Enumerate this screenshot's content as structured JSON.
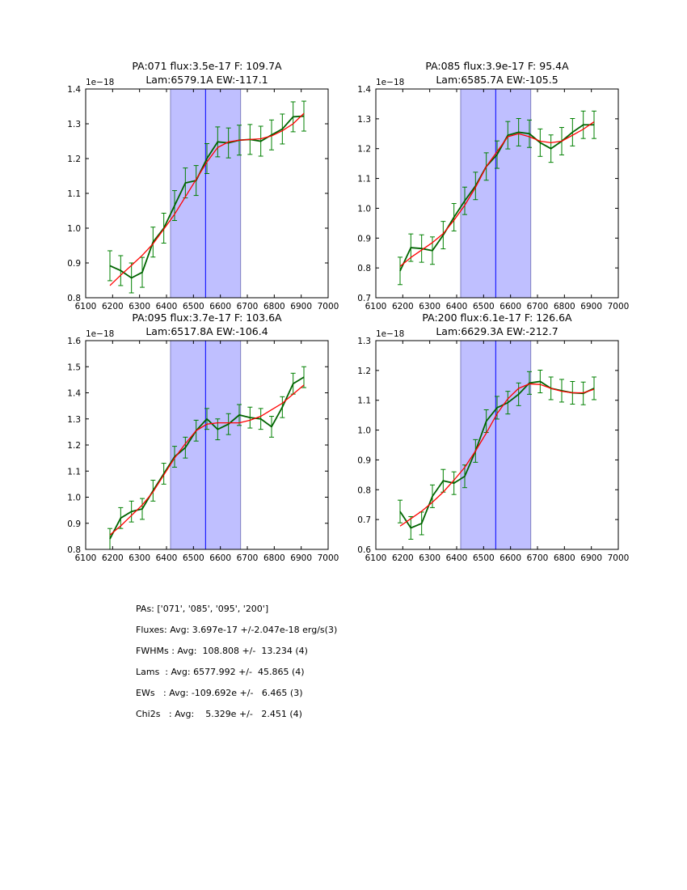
{
  "colors": {
    "data": "#006400",
    "errorbar": "#008000",
    "model": "#ff0000",
    "band": "#bfbfff",
    "band_edge": "#8080c0",
    "center": "#0000ff"
  },
  "chart_data": [
    {
      "type": "line",
      "title": [
        "PA:071 flux:3.5e-17 F: 109.7A",
        "Lam:6579.1A EW:-117.1"
      ],
      "offset_label": "1e−18",
      "xlim": [
        6100,
        7000
      ],
      "ylim": [
        0.8,
        1.4
      ],
      "xticks": [
        6100,
        6200,
        6300,
        6400,
        6500,
        6600,
        6700,
        6800,
        6900,
        7000
      ],
      "yticks": [
        "0.8",
        "0.9",
        "1.0",
        "1.1",
        "1.2",
        "1.3",
        "1.4"
      ],
      "band": [
        6415,
        6675
      ],
      "center": 6545,
      "x": [
        6190,
        6230,
        6270,
        6310,
        6350,
        6390,
        6430,
        6470,
        6510,
        6550,
        6590,
        6630,
        6670,
        6710,
        6750,
        6790,
        6830,
        6870,
        6910
      ],
      "series": [
        {
          "name": "data",
          "values": [
            0.892,
            0.878,
            0.857,
            0.873,
            0.96,
            1.0,
            1.065,
            1.13,
            1.137,
            1.2,
            1.248,
            1.245,
            1.253,
            1.255,
            1.25,
            1.268,
            1.285,
            1.32,
            1.322
          ],
          "err": 0.043
        },
        {
          "name": "model",
          "values": [
            0.835,
            0.865,
            0.893,
            0.922,
            0.955,
            0.997,
            1.04,
            1.09,
            1.14,
            1.19,
            1.232,
            1.248,
            1.253,
            1.255,
            1.257,
            1.265,
            1.28,
            1.3,
            1.33
          ]
        }
      ]
    },
    {
      "type": "line",
      "title": [
        "PA:085 flux:3.9e-17 F: 95.4A",
        "Lam:6585.7A EW:-105.5"
      ],
      "offset_label": "1e−18",
      "xlim": [
        6100,
        7000
      ],
      "ylim": [
        0.7,
        1.4
      ],
      "xticks": [
        6100,
        6200,
        6300,
        6400,
        6500,
        6600,
        6700,
        6800,
        6900,
        7000
      ],
      "yticks": [
        "0.7",
        "0.8",
        "0.9",
        "1.0",
        "1.1",
        "1.2",
        "1.3",
        "1.4"
      ],
      "band": [
        6415,
        6675
      ],
      "center": 6545,
      "x": [
        6190,
        6230,
        6270,
        6310,
        6350,
        6390,
        6430,
        6470,
        6510,
        6550,
        6590,
        6630,
        6670,
        6710,
        6750,
        6790,
        6830,
        6870,
        6910
      ],
      "series": [
        {
          "name": "data",
          "values": [
            0.79,
            0.868,
            0.865,
            0.858,
            0.91,
            0.97,
            1.025,
            1.075,
            1.14,
            1.18,
            1.245,
            1.255,
            1.25,
            1.22,
            1.2,
            1.225,
            1.255,
            1.28,
            1.28
          ],
          "err": 0.046
        },
        {
          "name": "model",
          "values": [
            0.805,
            0.835,
            0.86,
            0.885,
            0.915,
            0.96,
            1.01,
            1.07,
            1.14,
            1.19,
            1.24,
            1.25,
            1.24,
            1.225,
            1.22,
            1.225,
            1.245,
            1.265,
            1.29
          ]
        }
      ]
    },
    {
      "type": "line",
      "title": [
        "PA:095 flux:3.7e-17 F: 103.6A",
        "Lam:6517.8A EW:-106.4"
      ],
      "offset_label": "1e−18",
      "xlim": [
        6100,
        7000
      ],
      "ylim": [
        0.8,
        1.6
      ],
      "xticks": [
        6100,
        6200,
        6300,
        6400,
        6500,
        6600,
        6700,
        6800,
        6900,
        7000
      ],
      "yticks": [
        "0.8",
        "0.9",
        "1.0",
        "1.1",
        "1.2",
        "1.3",
        "1.4",
        "1.5",
        "1.6"
      ],
      "band": [
        6415,
        6675
      ],
      "center": 6545,
      "x": [
        6190,
        6230,
        6270,
        6310,
        6350,
        6390,
        6430,
        6470,
        6510,
        6550,
        6590,
        6630,
        6670,
        6710,
        6750,
        6790,
        6830,
        6870,
        6910
      ],
      "series": [
        {
          "name": "data",
          "values": [
            0.84,
            0.92,
            0.945,
            0.955,
            1.025,
            1.09,
            1.155,
            1.19,
            1.255,
            1.3,
            1.26,
            1.28,
            1.315,
            1.305,
            1.3,
            1.27,
            1.345,
            1.435,
            1.46
          ],
          "err": 0.04
        },
        {
          "name": "model",
          "values": [
            0.855,
            0.89,
            0.93,
            0.97,
            1.02,
            1.085,
            1.15,
            1.205,
            1.255,
            1.28,
            1.285,
            1.285,
            1.285,
            1.295,
            1.31,
            1.335,
            1.36,
            1.395,
            1.43
          ]
        }
      ]
    },
    {
      "type": "line",
      "title": [
        "PA:200 flux:6.1e-17 F: 126.6A",
        "Lam:6629.3A EW:-212.7"
      ],
      "offset_label": "1e−18",
      "xlim": [
        6100,
        7000
      ],
      "ylim": [
        0.6,
        1.3
      ],
      "xticks": [
        6100,
        6200,
        6300,
        6400,
        6500,
        6600,
        6700,
        6800,
        6900,
        7000
      ],
      "yticks": [
        "0.6",
        "0.7",
        "0.8",
        "0.9",
        "1.0",
        "1.1",
        "1.2",
        "1.3"
      ],
      "band": [
        6415,
        6675
      ],
      "center": 6545,
      "x": [
        6190,
        6230,
        6270,
        6310,
        6350,
        6390,
        6430,
        6470,
        6510,
        6550,
        6590,
        6630,
        6670,
        6710,
        6750,
        6790,
        6830,
        6870,
        6910
      ],
      "series": [
        {
          "name": "data",
          "values": [
            0.727,
            0.672,
            0.687,
            0.778,
            0.83,
            0.822,
            0.845,
            0.93,
            1.03,
            1.075,
            1.092,
            1.12,
            1.158,
            1.163,
            1.14,
            1.132,
            1.125,
            1.123,
            1.14
          ],
          "err": 0.038
        },
        {
          "name": "model",
          "values": [
            0.678,
            0.703,
            0.728,
            0.758,
            0.792,
            0.832,
            0.875,
            0.93,
            0.99,
            1.055,
            1.105,
            1.14,
            1.155,
            1.153,
            1.14,
            1.13,
            1.125,
            1.125,
            1.137
          ]
        }
      ]
    }
  ],
  "stats": [
    "PAs: ['071', '085', '095', '200']",
    "Fluxes: Avg: 3.697e-17 +/-2.047e-18 erg/s(3)",
    "FWHMs : Avg:  108.808 +/-  13.234 (4)",
    "Lams  : Avg: 6577.992 +/-  45.865 (4)",
    "EWs   : Avg: -109.692e +/-   6.465 (3)",
    "Chi2s   : Avg:    5.329e +/-   2.451 (4)"
  ]
}
